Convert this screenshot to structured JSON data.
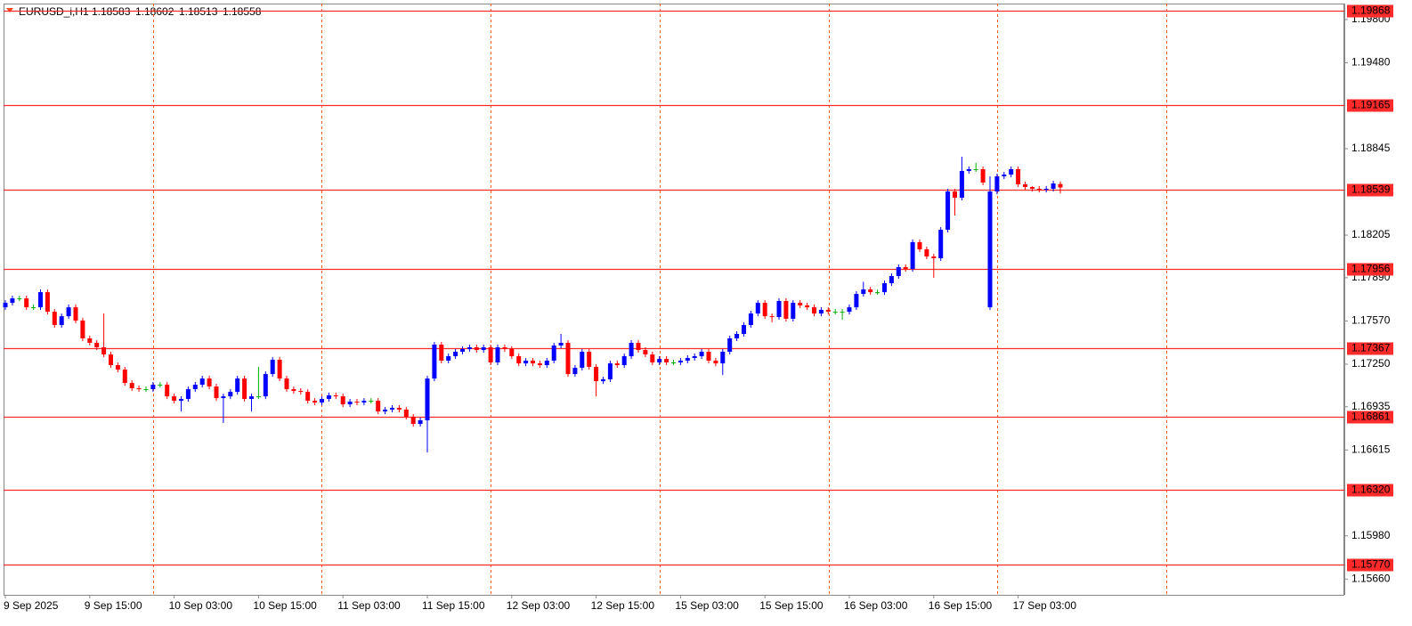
{
  "chart_data": {
    "type": "candlestick",
    "symbol": "EURUSD_i,H1",
    "bull_color": "#0000ff",
    "bear_color": "#ff0000",
    "doji_color": "#00b000",
    "level_color": "#ff2a2a",
    "text_color": "#ff4a1a",
    "ylim": [
      1.1553,
      1.19945
    ],
    "yticks": [
      {
        "value": 1.198,
        "label": "1.19800"
      },
      {
        "value": 1.1948,
        "label": "1.19480"
      },
      1.18845,
      1.18205,
      {
        "value": 1.1789,
        "label": "1.17890"
      },
      {
        "value": 1.1757,
        "label": "1.17570"
      },
      {
        "value": 1.1725,
        "label": "1.17250"
      },
      1.16935,
      1.16615,
      {
        "value": 1.1598,
        "label": "1.15980"
      },
      {
        "value": 1.1566,
        "label": "1.15660"
      }
    ],
    "levels": [
      1.19868,
      1.19165,
      1.18539,
      1.17956,
      1.17367,
      1.16861,
      {
        "value": 1.1632,
        "label": "1.16320"
      },
      {
        "value": 1.1577,
        "label": "1.15770"
      }
    ],
    "categories": [
      "9 Sep 2025",
      null,
      null,
      null,
      null,
      null,
      null,
      null,
      null,
      null,
      null,
      null,
      "9 Sep 15:00",
      null,
      null,
      null,
      null,
      null,
      null,
      null,
      null,
      null,
      null,
      null,
      "10 Sep 03:00",
      null,
      null,
      null,
      null,
      null,
      null,
      null,
      null,
      null,
      null,
      null,
      "10 Sep 15:00",
      null,
      null,
      null,
      null,
      null,
      null,
      null,
      null,
      null,
      null,
      null,
      "11 Sep 03:00",
      null,
      null,
      null,
      null,
      null,
      null,
      null,
      null,
      null,
      null,
      null,
      "11 Sep 15:00",
      null,
      null,
      null,
      null,
      null,
      null,
      null,
      null,
      null,
      null,
      null,
      "12 Sep 03:00",
      null,
      null,
      null,
      null,
      null,
      null,
      null,
      null,
      null,
      null,
      null,
      "12 Sep 15:00",
      null,
      null,
      null,
      null,
      null,
      null,
      null,
      null,
      null,
      null,
      null,
      "15 Sep 03:00",
      null,
      null,
      null,
      null,
      null,
      null,
      null,
      null,
      null,
      null,
      null,
      "15 Sep 15:00",
      null,
      null,
      null,
      null,
      null,
      null,
      null,
      null,
      null,
      null,
      null,
      "16 Sep 03:00",
      null,
      null,
      null,
      null,
      null,
      null,
      null,
      null,
      null,
      null,
      null,
      "16 Sep 15:00",
      null,
      null,
      null,
      null,
      null,
      null,
      null,
      null,
      null,
      null,
      null,
      "17 Sep 03:00",
      null,
      null,
      null,
      null,
      null,
      null
    ],
    "ohlc": [
      [
        1.17671,
        1.17724,
        1.17651,
        1.17704
      ],
      [
        1.17704,
        1.17757,
        1.17684,
        1.17737
      ],
      [
        1.17737,
        1.17757,
        1.17717,
        1.17737
      ],
      [
        1.17737,
        1.17757,
        1.17651,
        1.17671
      ],
      [
        1.17671,
        1.17691,
        1.17651,
        1.17671
      ],
      [
        1.17671,
        1.17803,
        1.17651,
        1.17783
      ],
      [
        1.17783,
        1.17803,
        1.17618,
        1.17638
      ],
      [
        1.17638,
        1.17658,
        1.1752,
        1.1754
      ],
      [
        1.1754,
        1.17625,
        1.1752,
        1.17605
      ],
      [
        1.17605,
        1.17691,
        1.17585,
        1.17671
      ],
      [
        1.17671,
        1.17691,
        1.17553,
        1.17573
      ],
      [
        1.17573,
        1.17593,
        1.17421,
        1.17441
      ],
      [
        1.17441,
        1.17461,
        1.17388,
        1.17408
      ],
      [
        1.17408,
        1.17428,
        1.17355,
        1.17375
      ],
      [
        1.17375,
        1.17625,
        1.17302,
        1.17322
      ],
      [
        1.17322,
        1.17342,
        1.17223,
        1.17243
      ],
      [
        1.17243,
        1.17263,
        1.1719,
        1.1721
      ],
      [
        1.1721,
        1.1723,
        1.17091,
        1.17111
      ],
      [
        1.17111,
        1.17131,
        1.17052,
        1.17072
      ],
      [
        1.17072,
        1.17092,
        1.17045,
        1.17065
      ],
      [
        1.17065,
        1.17085,
        1.17045,
        1.17065
      ],
      [
        1.17065,
        1.17118,
        1.17045,
        1.17098
      ],
      [
        1.17098,
        1.17118,
        1.17078,
        1.17098
      ],
      [
        1.17098,
        1.17118,
        1.16992,
        1.17012
      ],
      [
        1.17012,
        1.17032,
        1.16959,
        1.16979
      ],
      [
        1.16979,
        1.17013,
        1.169,
        1.16993
      ],
      [
        1.16993,
        1.17085,
        1.16973,
        1.17065
      ],
      [
        1.17065,
        1.17118,
        1.17045,
        1.17098
      ],
      [
        1.17098,
        1.17164,
        1.17078,
        1.17144
      ],
      [
        1.17144,
        1.17164,
        1.17065,
        1.17085
      ],
      [
        1.17085,
        1.17105,
        1.16979,
        1.16999
      ],
      [
        1.16999,
        1.17032,
        1.16815,
        1.17012
      ],
      [
        1.17012,
        1.17065,
        1.16992,
        1.17045
      ],
      [
        1.17045,
        1.17164,
        1.17025,
        1.17144
      ],
      [
        1.17144,
        1.17164,
        1.16973,
        1.16993
      ],
      [
        1.16993,
        1.17032,
        1.169,
        1.17012
      ],
      [
        1.17012,
        1.1723,
        1.16992,
        1.17012
      ],
      [
        1.17012,
        1.17197,
        1.16992,
        1.17177
      ],
      [
        1.17177,
        1.17303,
        1.17157,
        1.17283
      ],
      [
        1.17283,
        1.17303,
        1.17124,
        1.17144
      ],
      [
        1.17144,
        1.17164,
        1.17045,
        1.17065
      ],
      [
        1.17065,
        1.17085,
        1.17032,
        1.17052
      ],
      [
        1.17052,
        1.17072,
        1.17025,
        1.17045
      ],
      [
        1.17045,
        1.17065,
        1.16959,
        1.16979
      ],
      [
        1.16979,
        1.16999,
        1.16946,
        1.16966
      ],
      [
        1.16966,
        1.17013,
        1.16946,
        1.16993
      ],
      [
        1.16993,
        1.17039,
        1.16973,
        1.17019
      ],
      [
        1.17019,
        1.17039,
        1.16992,
        1.17012
      ],
      [
        1.17012,
        1.17032,
        1.16933,
        1.16953
      ],
      [
        1.16953,
        1.16993,
        1.16933,
        1.16973
      ],
      [
        1.16973,
        1.16993,
        1.16946,
        1.16966
      ],
      [
        1.16966,
        1.16999,
        1.16946,
        1.16979
      ],
      [
        1.16979,
        1.16999,
        1.16959,
        1.16979
      ],
      [
        1.16979,
        1.16999,
        1.1688,
        1.169
      ],
      [
        1.169,
        1.16934,
        1.1688,
        1.16914
      ],
      [
        1.16914,
        1.16947,
        1.16894,
        1.16927
      ],
      [
        1.16927,
        1.16947,
        1.16894,
        1.16914
      ],
      [
        1.16914,
        1.16934,
        1.16841,
        1.16861
      ],
      [
        1.16861,
        1.16881,
        1.16788,
        1.16808
      ],
      [
        1.16808,
        1.16855,
        1.16788,
        1.16835
      ],
      [
        1.16835,
        1.17164,
        1.16597,
        1.17144
      ],
      [
        1.17144,
        1.17415,
        1.17124,
        1.17395
      ],
      [
        1.17395,
        1.17415,
        1.17256,
        1.17276
      ],
      [
        1.17276,
        1.17329,
        1.17256,
        1.17309
      ],
      [
        1.17309,
        1.17362,
        1.17289,
        1.17342
      ],
      [
        1.17342,
        1.17382,
        1.17322,
        1.17362
      ],
      [
        1.17362,
        1.17395,
        1.17342,
        1.17375
      ],
      [
        1.17375,
        1.17395,
        1.17335,
        1.17355
      ],
      [
        1.17355,
        1.17395,
        1.17335,
        1.17375
      ],
      [
        1.17375,
        1.17395,
        1.17243,
        1.17263
      ],
      [
        1.17263,
        1.17395,
        1.17243,
        1.17375
      ],
      [
        1.17375,
        1.17395,
        1.17342,
        1.17362
      ],
      [
        1.17362,
        1.17382,
        1.17289,
        1.17309
      ],
      [
        1.17309,
        1.17329,
        1.17236,
        1.17256
      ],
      [
        1.17256,
        1.17296,
        1.17236,
        1.17276
      ],
      [
        1.17276,
        1.17296,
        1.17236,
        1.17256
      ],
      [
        1.17256,
        1.17276,
        1.17223,
        1.17243
      ],
      [
        1.17243,
        1.17296,
        1.17223,
        1.17276
      ],
      [
        1.17276,
        1.17408,
        1.17256,
        1.17388
      ],
      [
        1.17388,
        1.17474,
        1.17368,
        1.17408
      ],
      [
        1.17408,
        1.17428,
        1.17157,
        1.17177
      ],
      [
        1.17177,
        1.17243,
        1.17157,
        1.17223
      ],
      [
        1.17223,
        1.17362,
        1.17203,
        1.17342
      ],
      [
        1.17342,
        1.17362,
        1.1721,
        1.1723
      ],
      [
        1.1723,
        1.1725,
        1.17012,
        1.17124
      ],
      [
        1.17124,
        1.17158,
        1.17104,
        1.17138
      ],
      [
        1.17138,
        1.17276,
        1.17118,
        1.17256
      ],
      [
        1.17256,
        1.17276,
        1.17223,
        1.17243
      ],
      [
        1.17243,
        1.17329,
        1.17223,
        1.17309
      ],
      [
        1.17309,
        1.17428,
        1.17289,
        1.17408
      ],
      [
        1.17408,
        1.17428,
        1.17335,
        1.17355
      ],
      [
        1.17355,
        1.17375,
        1.17302,
        1.17322
      ],
      [
        1.17322,
        1.17342,
        1.17243,
        1.17263
      ],
      [
        1.17263,
        1.17309,
        1.17243,
        1.17289
      ],
      [
        1.17289,
        1.17309,
        1.17243,
        1.17263
      ],
      [
        1.17263,
        1.17283,
        1.17243,
        1.17263
      ],
      [
        1.17263,
        1.17296,
        1.17243,
        1.17276
      ],
      [
        1.17276,
        1.17316,
        1.17256,
        1.17296
      ],
      [
        1.17296,
        1.17329,
        1.17276,
        1.17309
      ],
      [
        1.17309,
        1.17362,
        1.17289,
        1.17342
      ],
      [
        1.17342,
        1.17362,
        1.17256,
        1.17276
      ],
      [
        1.17276,
        1.17296,
        1.17236,
        1.17256
      ],
      [
        1.17256,
        1.17362,
        1.1717,
        1.17342
      ],
      [
        1.17342,
        1.17461,
        1.17322,
        1.17441
      ],
      [
        1.17441,
        1.17494,
        1.17421,
        1.17474
      ],
      [
        1.17474,
        1.1756,
        1.17454,
        1.1754
      ],
      [
        1.1754,
        1.17645,
        1.1752,
        1.17625
      ],
      [
        1.17625,
        1.17724,
        1.17605,
        1.17704
      ],
      [
        1.17704,
        1.17724,
        1.17585,
        1.17605
      ],
      [
        1.17605,
        1.17625,
        1.1756,
        1.17599
      ],
      [
        1.17599,
        1.17738,
        1.17579,
        1.17718
      ],
      [
        1.17718,
        1.17738,
        1.17566,
        1.17586
      ],
      [
        1.17586,
        1.17724,
        1.17566,
        1.17704
      ],
      [
        1.17704,
        1.17724,
        1.17665,
        1.17685
      ],
      [
        1.17685,
        1.17705,
        1.17651,
        1.17671
      ],
      [
        1.17671,
        1.17691,
        1.17605,
        1.17625
      ],
      [
        1.17625,
        1.17672,
        1.17605,
        1.17652
      ],
      [
        1.17652,
        1.17672,
        1.17618,
        1.17638
      ],
      [
        1.17638,
        1.17658,
        1.17618,
        1.17638
      ],
      [
        1.17638,
        1.17658,
        1.1758,
        1.17638
      ],
      [
        1.17638,
        1.17691,
        1.17618,
        1.17671
      ],
      [
        1.17671,
        1.1779,
        1.17651,
        1.1777
      ],
      [
        1.1777,
        1.1786,
        1.1775,
        1.17803
      ],
      [
        1.17803,
        1.17823,
        1.17763,
        1.17783
      ],
      [
        1.17783,
        1.17803,
        1.17763,
        1.17783
      ],
      [
        1.17783,
        1.17869,
        1.17763,
        1.17849
      ],
      [
        1.17849,
        1.17922,
        1.17829,
        1.17902
      ],
      [
        1.17902,
        1.17988,
        1.17882,
        1.17968
      ],
      [
        1.17968,
        1.17988,
        1.17935,
        1.17955
      ],
      [
        1.17955,
        1.18173,
        1.17935,
        1.18153
      ],
      [
        1.18153,
        1.18173,
        1.1808,
        1.181
      ],
      [
        1.181,
        1.1812,
        1.18027,
        1.18047
      ],
      [
        1.18047,
        1.18067,
        1.17889,
        1.18034
      ],
      [
        1.18034,
        1.18265,
        1.18014,
        1.18245
      ],
      [
        1.18245,
        1.18548,
        1.18225,
        1.18528
      ],
      [
        1.18528,
        1.18548,
        1.1835,
        1.18482
      ],
      [
        1.18482,
        1.18785,
        1.18462,
        1.1868
      ],
      [
        1.1868,
        1.18713,
        1.1866,
        1.18693
      ],
      [
        1.18693,
        1.1874,
        1.18673,
        1.18693
      ],
      [
        1.18693,
        1.18713,
        1.18574,
        1.18594
      ],
      [
        1.17671,
        1.1864,
        1.17651,
        1.18528
      ],
      [
        1.18528,
        1.1866,
        1.18508,
        1.1864
      ],
      [
        1.1864,
        1.18673,
        1.1862,
        1.18653
      ],
      [
        1.18653,
        1.18713,
        1.18633,
        1.18693
      ],
      [
        1.18693,
        1.18713,
        1.18561,
        1.18581
      ],
      [
        1.18581,
        1.18601,
        1.18541,
        1.18561
      ],
      [
        1.18561,
        1.18568,
        1.18528,
        1.18548
      ],
      [
        1.18548,
        1.18568,
        1.18521,
        1.18541
      ],
      [
        1.18541,
        1.18568,
        1.18521,
        1.18548
      ],
      [
        1.18548,
        1.18607,
        1.18528,
        1.18587
      ],
      [
        1.18583,
        1.18602,
        1.18513,
        1.18558
      ]
    ]
  }
}
